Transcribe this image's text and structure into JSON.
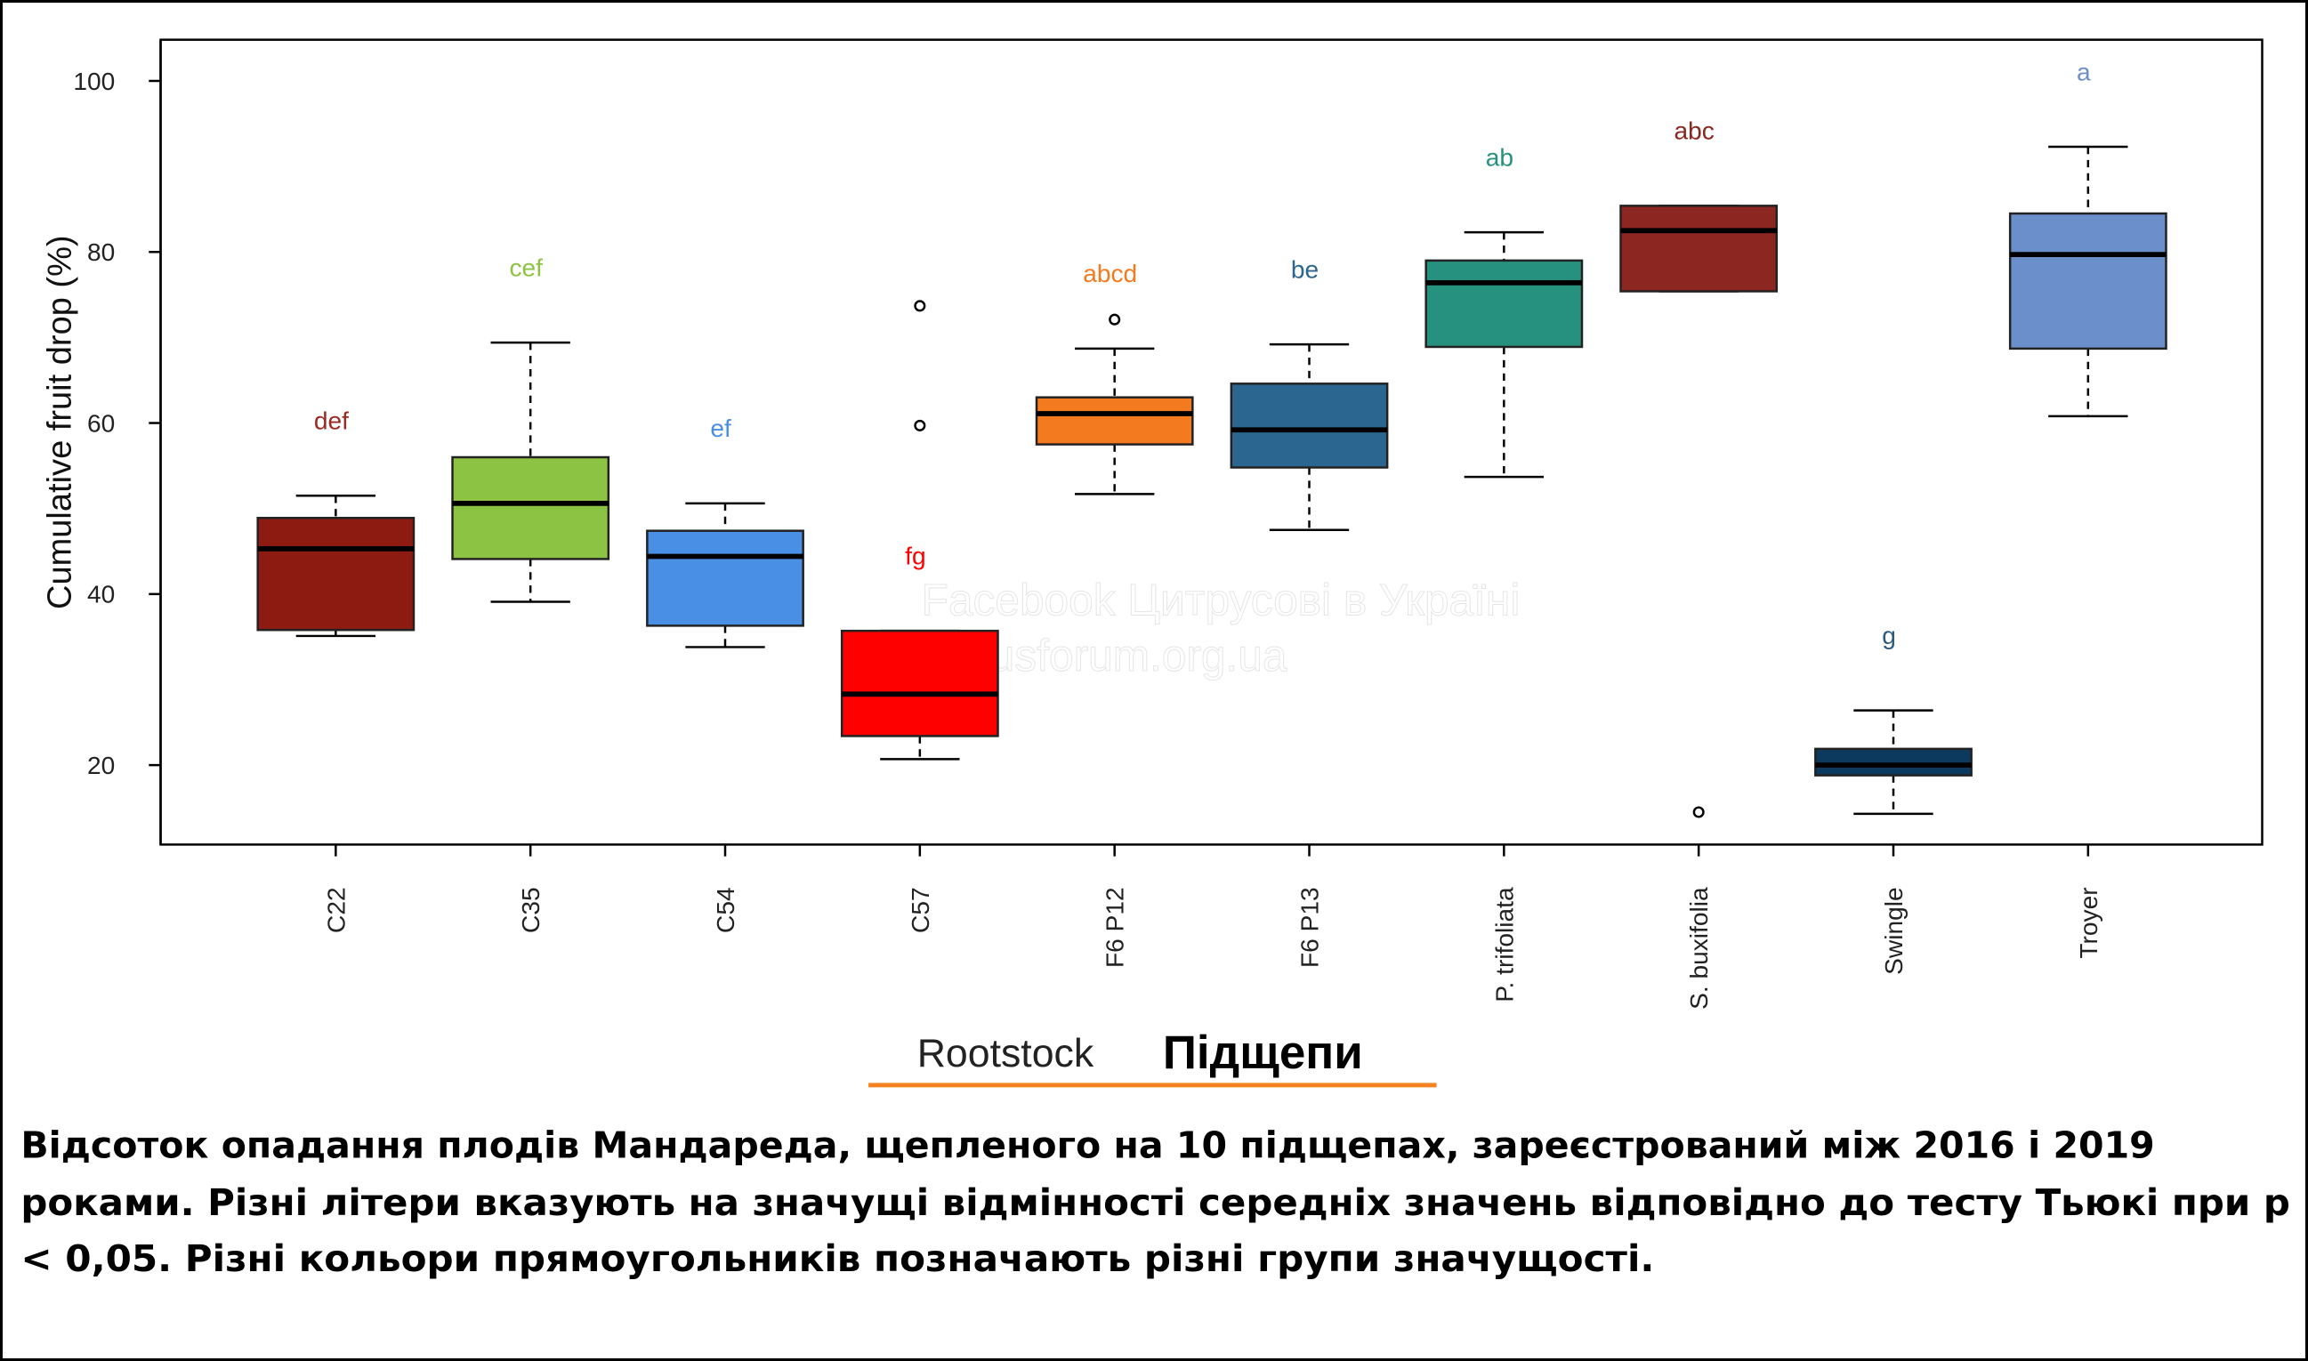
{
  "chart_data": {
    "type": "box",
    "ylabel": "Cumulative fruit drop (%)",
    "xlabel": "Rootstock",
    "xlabel_translation": "Підщепи",
    "ylim": [
      10,
      104
    ],
    "yticks": [
      20,
      40,
      60,
      80,
      100
    ],
    "grid": false,
    "categories": [
      "C22",
      "C35",
      "C54",
      "C57",
      "F6 P12",
      "F6 P13",
      "P. trifoliata",
      "S. buxifolia",
      "Swingle",
      "Troyer"
    ],
    "boxes": [
      {
        "name": "C22",
        "whisker_low": 35.1,
        "q1": 35.8,
        "median": 45.3,
        "q3": 48.9,
        "whisker_high": 51.5,
        "outliers": [],
        "letters": "def",
        "color": "#8E1B12",
        "letter_color": "#9B2A22"
      },
      {
        "name": "C35",
        "whisker_low": 39.1,
        "q1": 44.1,
        "median": 50.6,
        "q3": 56.0,
        "whisker_high": 69.4,
        "outliers": [],
        "letters": "cef",
        "color": "#8DC343",
        "letter_color": "#8DC343"
      },
      {
        "name": "C54",
        "whisker_low": 33.8,
        "q1": 36.3,
        "median": 44.4,
        "q3": 47.4,
        "whisker_high": 50.6,
        "outliers": [],
        "letters": "ef",
        "color": "#4A8FE6",
        "letter_color": "#4A8FE6"
      },
      {
        "name": "C57",
        "whisker_low": 20.7,
        "q1": 23.4,
        "median": 28.3,
        "q3": 35.7,
        "whisker_high": 35.7,
        "outliers": [
          59.7,
          73.7
        ],
        "letters": "fg",
        "color": "#FF0000",
        "letter_color": "#FF0000"
      },
      {
        "name": "F6 P12",
        "whisker_low": 51.7,
        "q1": 57.5,
        "median": 61.1,
        "q3": 63.0,
        "whisker_high": 68.7,
        "outliers": [
          72.1
        ],
        "letters": "abcd",
        "color": "#F47A20",
        "letter_color": "#F47A20"
      },
      {
        "name": "F6 P13",
        "whisker_low": 47.5,
        "q1": 54.8,
        "median": 59.2,
        "q3": 64.6,
        "whisker_high": 69.2,
        "outliers": [],
        "letters": "be",
        "color": "#2B6690",
        "letter_color": "#2B6690"
      },
      {
        "name": "P. trifoliata",
        "whisker_low": 53.7,
        "q1": 68.9,
        "median": 76.4,
        "q3": 79.0,
        "whisker_high": 82.3,
        "outliers": [],
        "letters": "ab",
        "color": "#27917F",
        "letter_color": "#27917F"
      },
      {
        "name": "S. buxifolia",
        "whisker_low": 75.4,
        "q1": 75.4,
        "median": 82.5,
        "q3": 85.4,
        "whisker_high": 85.4,
        "outliers": [
          14.5
        ],
        "letters": "abc",
        "color": "#8C2621",
        "letter_color": "#8C2621"
      },
      {
        "name": "Swingle",
        "whisker_low": 14.3,
        "q1": 18.8,
        "median": 20.0,
        "q3": 21.9,
        "whisker_high": 26.4,
        "outliers": [],
        "letters": "g",
        "color": "#0C3A5E",
        "letter_color": "#2B5C80"
      },
      {
        "name": "Troyer",
        "whisker_low": 60.8,
        "q1": 68.7,
        "median": 79.7,
        "q3": 84.5,
        "whisker_high": 92.3,
        "outliers": [],
        "letters": "a",
        "color": "#6B8FCB",
        "letter_color": "#6B8FCB"
      }
    ],
    "watermark": [
      "Facebook Цитрусові в Україні",
      "Citrusforum.org.ua"
    ],
    "accent_underline_color": "#F58220"
  },
  "caption": {
    "lines": [
      "Відсоток опадання плодів Мандареда, щепленого на 10 підщепах, зареєстрований між 2016 і 2019",
      "роками. Різні літери вказують на значущі відмінності середніх значень відповідно до тесту Тьюкі при p",
      "< 0,05. Різні кольори прямоугольників позначають різні групи значущості."
    ]
  }
}
